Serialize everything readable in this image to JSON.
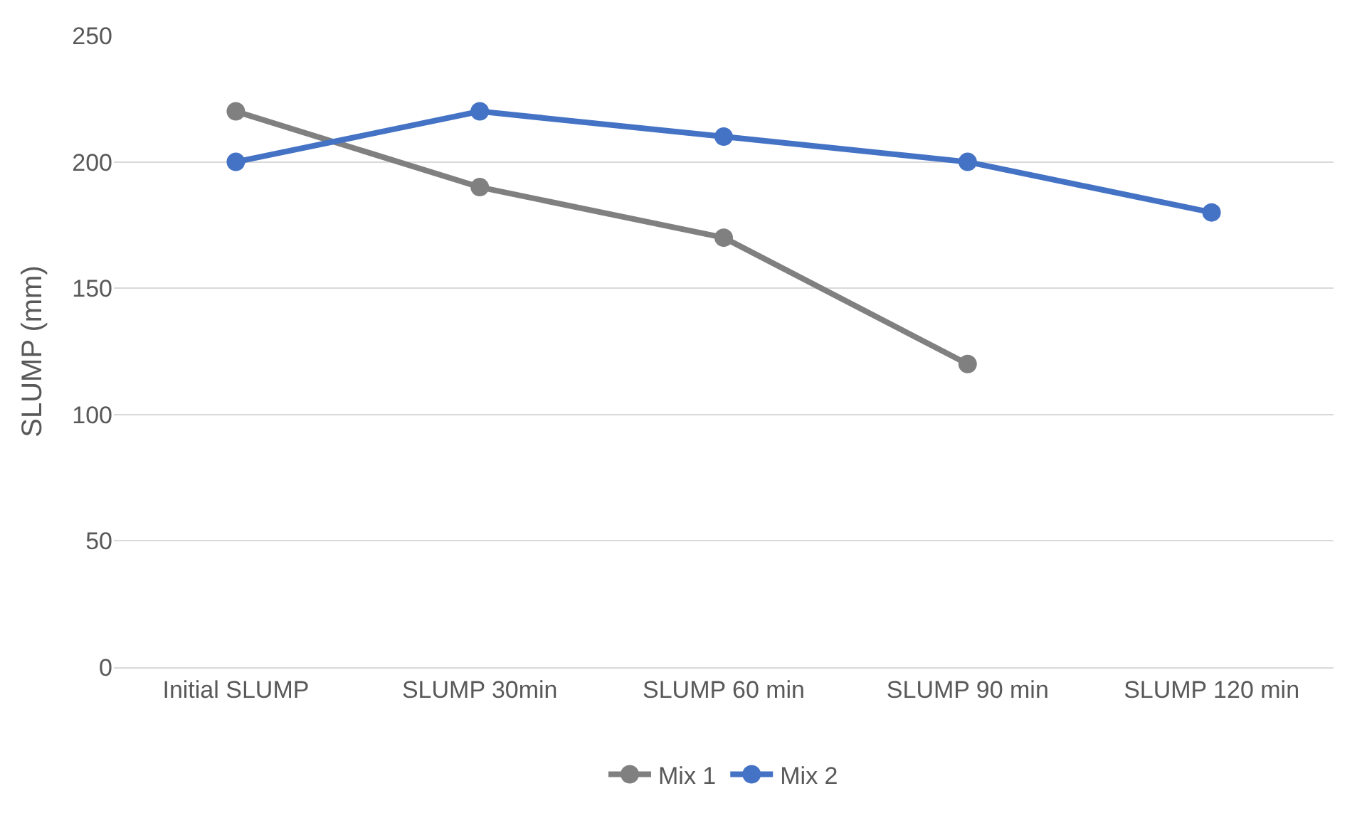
{
  "chart_data": {
    "type": "line",
    "ylabel": "SLUMP (mm)",
    "categories": [
      "Initial SLUMP",
      "SLUMP 30min",
      "SLUMP 60 min",
      "SLUMP 90 min",
      "SLUMP 120 min"
    ],
    "series": [
      {
        "name": "Mix 1",
        "color": "#808080",
        "values": [
          220,
          190,
          170,
          120,
          null
        ]
      },
      {
        "name": "Mix 2",
        "color": "#4472c4",
        "values": [
          200,
          220,
          210,
          200,
          180
        ]
      }
    ],
    "ylim": [
      0,
      250
    ],
    "yticks": [
      0,
      50,
      100,
      150,
      200,
      250
    ],
    "grid": "y",
    "legend": "bottom",
    "marker": "circle",
    "line_style": "solid"
  }
}
